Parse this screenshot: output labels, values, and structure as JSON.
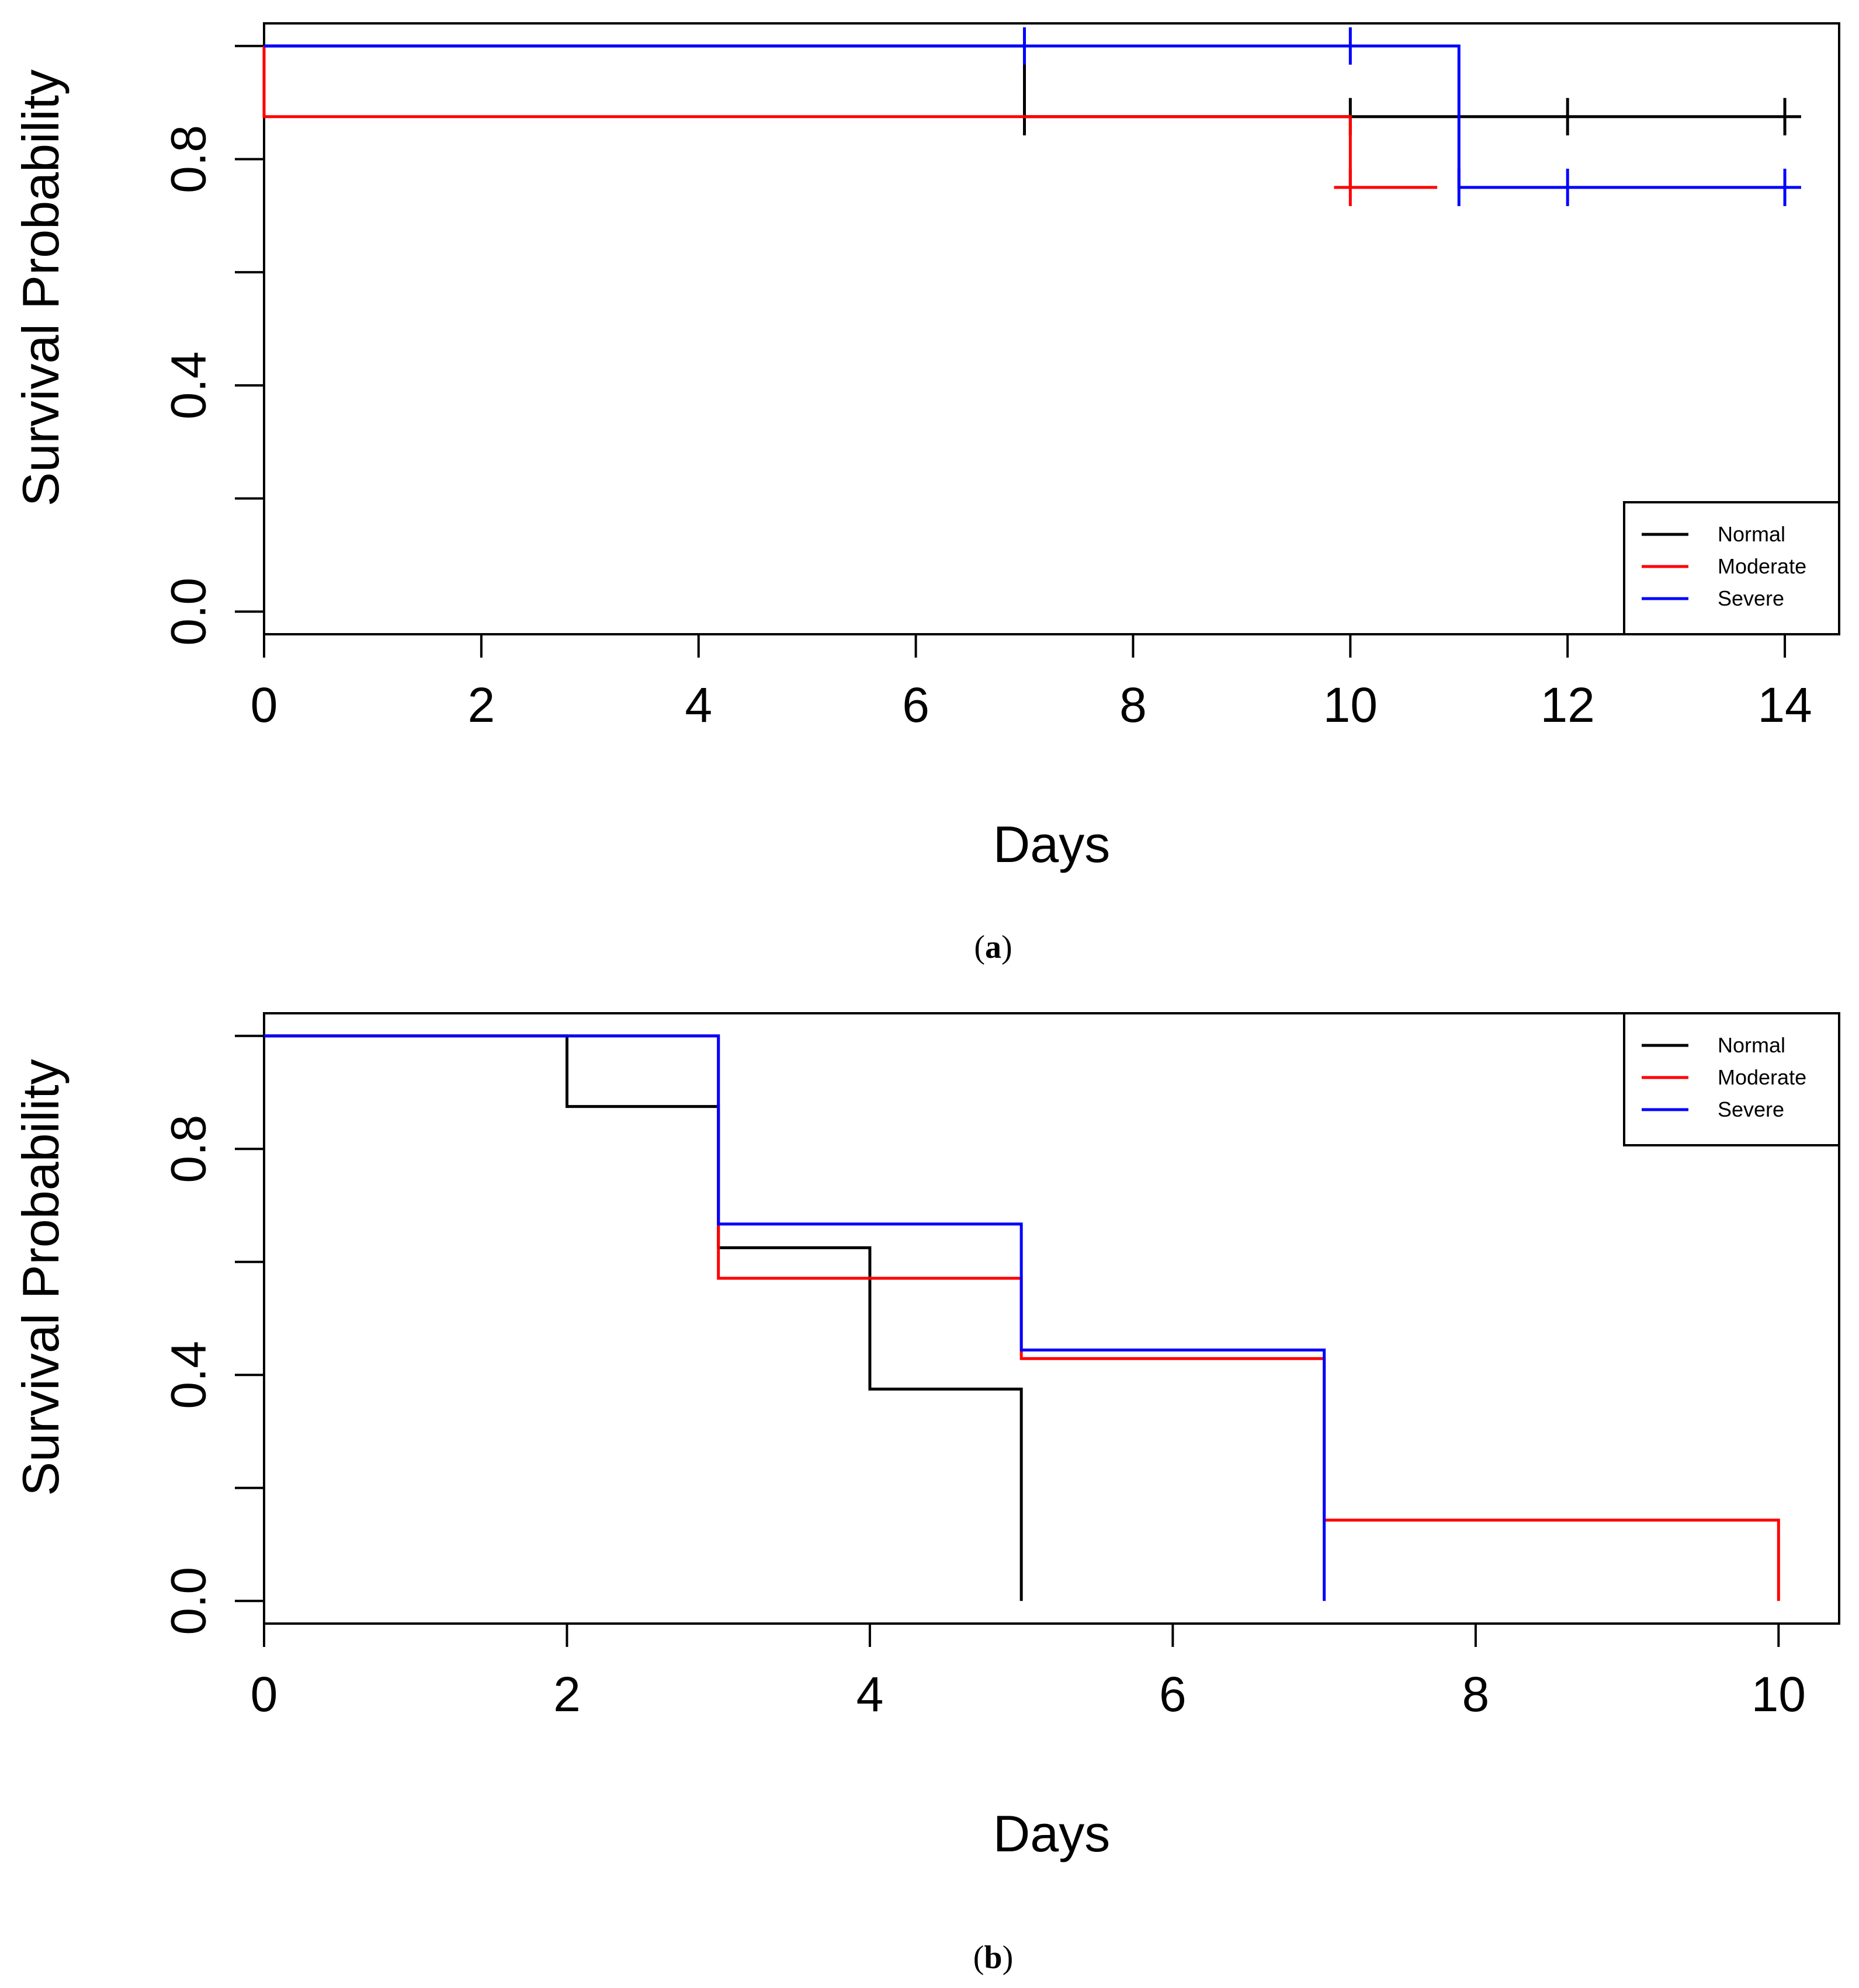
{
  "colors": {
    "Normal": "#000000",
    "Moderate": "#ff0000",
    "Severe": "#0000ff",
    "frame": "#000000"
  },
  "chart_data": [
    {
      "type": "line",
      "subtype": "kaplan-meier step",
      "panel_label_letter": "a",
      "panel_label_open": "(",
      "panel_label_close": ")",
      "xlabel": "Days",
      "ylabel": "Survival Probability",
      "xlim": [
        0,
        14.5
      ],
      "ylim": [
        -0.04,
        1.04
      ],
      "xticks": [
        0,
        2,
        4,
        6,
        8,
        10,
        12,
        14
      ],
      "xtick_labels": [
        "0",
        "2",
        "4",
        "6",
        "8",
        "10",
        "12",
        "14"
      ],
      "yticks": [
        0.0,
        0.2,
        0.4,
        0.6,
        0.8,
        1.0
      ],
      "ytick_labels": [
        "0.0",
        "",
        "0.4",
        "",
        "0.8",
        ""
      ],
      "legend": {
        "position": "bottom-right",
        "entries": [
          "Normal",
          "Moderate",
          "Severe"
        ]
      },
      "series": [
        {
          "name": "Normal",
          "steps": [
            [
              0,
              1.0
            ],
            [
              7,
              0.875
            ],
            [
              14.15,
              0.875
            ]
          ],
          "censor_x": [
            7,
            10,
            12,
            14
          ]
        },
        {
          "name": "Moderate",
          "steps": [
            [
              0,
              1.0
            ],
            [
              0,
              0.875
            ],
            [
              10,
              0.75
            ],
            [
              10.8,
              0.75
            ]
          ],
          "lead_in": [
            [
              9.85,
              0.75
            ],
            [
              10,
              0.75
            ]
          ],
          "censor_x": [
            10
          ]
        },
        {
          "name": "Severe",
          "steps": [
            [
              0,
              1.0
            ],
            [
              11,
              0.75
            ],
            [
              14.15,
              0.75
            ]
          ],
          "censor_x": [
            7,
            10,
            11,
            12,
            14
          ]
        }
      ]
    },
    {
      "type": "line",
      "subtype": "kaplan-meier step",
      "panel_label_letter": "b",
      "panel_label_open": "(",
      "panel_label_close": ")",
      "xlabel": "Days",
      "ylabel": "Survival Probability",
      "xlim": [
        0,
        10.4
      ],
      "ylim": [
        -0.04,
        1.04
      ],
      "xticks": [
        0,
        2,
        4,
        6,
        8,
        10
      ],
      "xtick_labels": [
        "0",
        "2",
        "4",
        "6",
        "8",
        "10"
      ],
      "yticks": [
        0.0,
        0.2,
        0.4,
        0.6,
        0.8,
        1.0
      ],
      "ytick_labels": [
        "0.0",
        "",
        "0.4",
        "",
        "0.8",
        ""
      ],
      "legend": {
        "position": "top-right",
        "entries": [
          "Normal",
          "Moderate",
          "Severe"
        ]
      },
      "series": [
        {
          "name": "Normal",
          "steps": [
            [
              0,
              1.0
            ],
            [
              2,
              0.875
            ],
            [
              3,
              0.625
            ],
            [
              4,
              0.375
            ],
            [
              5,
              0.0
            ]
          ],
          "censor_x": []
        },
        {
          "name": "Moderate",
          "steps": [
            [
              0,
              1.0
            ],
            [
              3,
              0.571
            ],
            [
              5,
              0.429
            ],
            [
              7,
              0.143
            ],
            [
              10,
              0.0
            ]
          ],
          "censor_x": []
        },
        {
          "name": "Severe",
          "steps": [
            [
              0,
              1.0
            ],
            [
              3,
              0.667
            ],
            [
              5,
              0.444
            ],
            [
              7,
              0.0
            ]
          ],
          "censor_x": []
        }
      ]
    }
  ]
}
